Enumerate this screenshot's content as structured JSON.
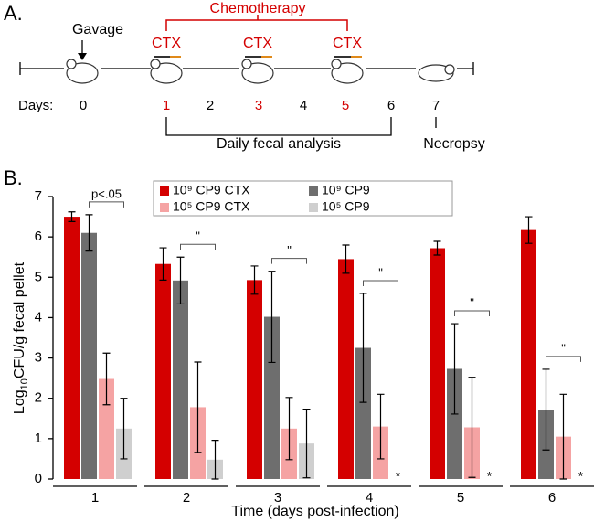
{
  "panel_a": {
    "label": "A.",
    "gavage": "Gavage",
    "chemotherapy": "Chemotherapy",
    "ctx_labels": [
      "CTX",
      "CTX",
      "CTX"
    ],
    "days_label": "Days:",
    "days": [
      "0",
      "1",
      "2",
      "3",
      "4",
      "5",
      "6",
      "7"
    ],
    "daily": "Daily fecal analysis",
    "necropsy": "Necropsy"
  },
  "chart_data": {
    "type": "bar",
    "label": "B.",
    "ylabel": [
      "Log",
      "10",
      "CFU/g fecal pellet"
    ],
    "xlabel": "Time (days post-infection)",
    "categories": [
      "1",
      "2",
      "3",
      "4",
      "5",
      "6"
    ],
    "ylim": [
      0,
      7
    ],
    "yticks": [
      0,
      1,
      2,
      3,
      4,
      5,
      6,
      7
    ],
    "series": [
      {
        "name": "10⁹ CP9 CTX",
        "color": "#d40000",
        "values": [
          6.5,
          5.33,
          4.93,
          5.45,
          5.72,
          6.17
        ],
        "errors": [
          0.12,
          0.4,
          0.35,
          0.35,
          0.17,
          0.33
        ]
      },
      {
        "name": "10⁹ CP9",
        "color": "#6e6e6e",
        "values": [
          6.1,
          4.92,
          4.02,
          3.25,
          2.73,
          1.72
        ],
        "errors": [
          0.45,
          0.58,
          1.13,
          1.35,
          1.12,
          1.0
        ]
      },
      {
        "name": "10⁵ CP9 CTX",
        "color": "#f5a3a3",
        "values": [
          2.48,
          1.78,
          1.25,
          1.3,
          1.28,
          1.05
        ],
        "errors": [
          0.64,
          1.12,
          0.77,
          0.8,
          1.24,
          1.05
        ]
      },
      {
        "name": "10⁵ CP9",
        "color": "#cfcfcf",
        "values": [
          1.25,
          0.48,
          0.88,
          null,
          null,
          null
        ],
        "errors": [
          0.75,
          0.48,
          0.85,
          null,
          null,
          null
        ]
      }
    ],
    "brackets": [
      "p<.05",
      "\"",
      "\"",
      "\"",
      "\"",
      "\""
    ],
    "asterisks": [
      null,
      null,
      null,
      "*",
      "*",
      "*"
    ]
  }
}
